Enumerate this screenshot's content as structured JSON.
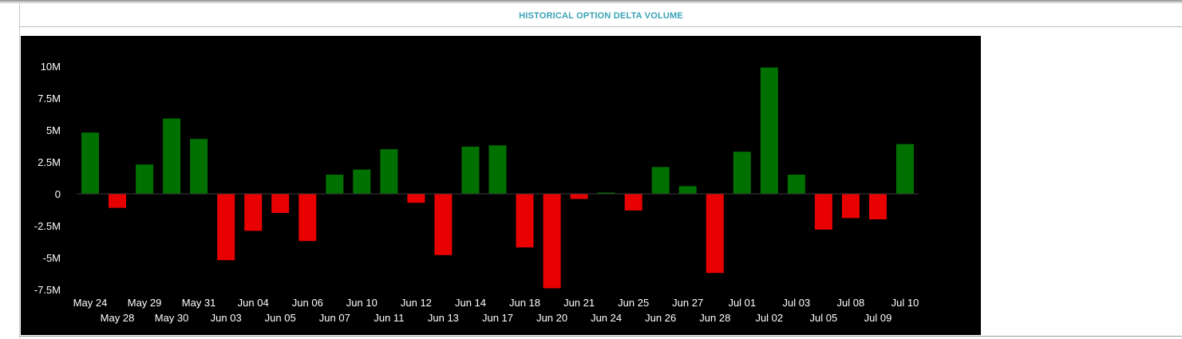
{
  "panel": {
    "title": "HISTORICAL OPTION DELTA VOLUME"
  },
  "colors": {
    "positive": "#007000",
    "negative": "#e80000",
    "background": "#000000",
    "title": "#3aa3b6",
    "axis_text": "#ffffff"
  },
  "chart_data": {
    "type": "bar",
    "title": "",
    "xlabel": "",
    "ylabel": "",
    "ylim": [
      -7500000,
      10000000
    ],
    "y_ticks": [
      10000000,
      7500000,
      5000000,
      2500000,
      0,
      -2500000,
      -5000000,
      -7500000
    ],
    "y_tick_labels": [
      "10M",
      "7.5M",
      "5M",
      "2.5M",
      "0",
      "-2.5M",
      "-5M",
      "-7.5M"
    ],
    "grid": false,
    "legend": "none",
    "categories": [
      "May 24",
      "May 28",
      "May 29",
      "May 30",
      "May 31",
      "Jun 03",
      "Jun 04",
      "Jun 05",
      "Jun 06",
      "Jun 07",
      "Jun 10",
      "Jun 11",
      "Jun 12",
      "Jun 13",
      "Jun 14",
      "Jun 17",
      "Jun 18",
      "Jun 20",
      "Jun 21",
      "Jun 24",
      "Jun 25",
      "Jun 26",
      "Jun 27",
      "Jun 28",
      "Jul 01",
      "Jul 02",
      "Jul 03",
      "Jul 05",
      "Jul 08",
      "Jul 09",
      "Jul 10"
    ],
    "values": [
      4800000,
      -1100000,
      2300000,
      5900000,
      4300000,
      -5200000,
      -2900000,
      -1500000,
      -3700000,
      1500000,
      1900000,
      3500000,
      -700000,
      -4800000,
      3700000,
      3800000,
      -4200000,
      -7400000,
      -400000,
      100000,
      -1300000,
      2100000,
      600000,
      -6200000,
      3300000,
      9900000,
      1500000,
      -2800000,
      -1900000,
      -2000000,
      3900000
    ]
  }
}
